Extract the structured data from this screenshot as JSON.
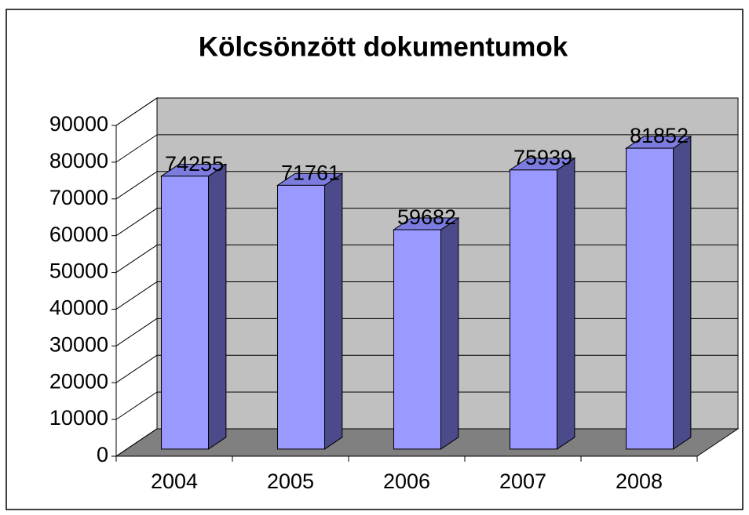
{
  "chart_data": {
    "type": "bar",
    "title": "Kölcsönzött dokumentumok",
    "categories": [
      "2004",
      "2005",
      "2006",
      "2007",
      "2008"
    ],
    "values": [
      74255,
      71761,
      59682,
      75939,
      81852
    ],
    "color": "#9999ff",
    "ylim": [
      0,
      90000
    ],
    "yticks": [
      0,
      10000,
      20000,
      30000,
      40000,
      50000,
      60000,
      70000,
      80000,
      90000
    ],
    "grid": true
  }
}
